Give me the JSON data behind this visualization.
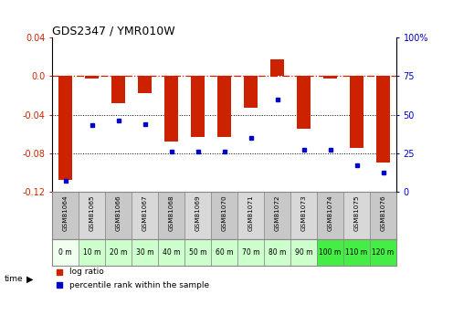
{
  "title": "GDS2347 / YMR010W",
  "samples": [
    "GSM81064",
    "GSM81065",
    "GSM81066",
    "GSM81067",
    "GSM81068",
    "GSM81069",
    "GSM81070",
    "GSM81071",
    "GSM81072",
    "GSM81073",
    "GSM81074",
    "GSM81075",
    "GSM81076"
  ],
  "time_labels": [
    "0 m",
    "10 m",
    "20 m",
    "30 m",
    "40 m",
    "50 m",
    "60 m",
    "70 m",
    "80 m",
    "90 m",
    "100 m",
    "110 m",
    "120 m"
  ],
  "log_ratio": [
    -0.108,
    -0.002,
    -0.028,
    -0.018,
    -0.068,
    -0.063,
    -0.063,
    -0.033,
    0.018,
    -0.055,
    -0.002,
    -0.075,
    -0.09
  ],
  "percentile": [
    7,
    43,
    46,
    44,
    26,
    26,
    26,
    35,
    60,
    27,
    27,
    17,
    12
  ],
  "bar_color": "#cc2200",
  "dot_color": "#0000cc",
  "ylim_left": [
    -0.12,
    0.04
  ],
  "ylim_right": [
    0,
    100
  ],
  "yticks_left": [
    0.04,
    0.0,
    -0.04,
    -0.08,
    -0.12
  ],
  "yticks_right": [
    100,
    75,
    50,
    25,
    0
  ],
  "background_color": "#ffffff",
  "sample_bg_color_odd": "#c8c8c8",
  "sample_bg_color_even": "#d8d8d8",
  "time_bg_colors": [
    "#f0fff0",
    "#ccffcc",
    "#ccffcc",
    "#ccffcc",
    "#ccffcc",
    "#ccffcc",
    "#ccffcc",
    "#ccffcc",
    "#ccffcc",
    "#ccffcc",
    "#44ee44",
    "#44ee44",
    "#44ee44"
  ],
  "legend_log_ratio": "log ratio",
  "legend_percentile": "percentile rank within the sample"
}
